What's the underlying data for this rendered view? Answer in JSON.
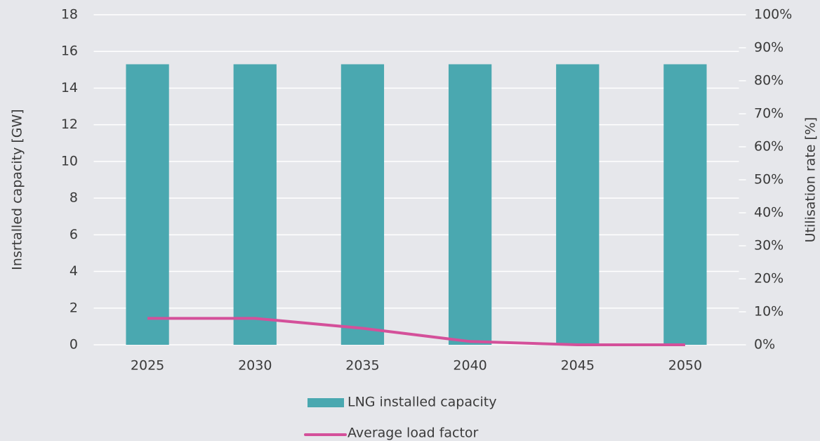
{
  "chart_data": {
    "type": "bar",
    "categories": [
      "2025",
      "2030",
      "2035",
      "2040",
      "2045",
      "2050"
    ],
    "series": [
      {
        "name": "LNG installed capacity",
        "type": "bar",
        "color": "#4aa8b0",
        "values": [
          15.3,
          15.3,
          15.3,
          15.3,
          15.3,
          15.3
        ]
      },
      {
        "name": "Average load factor",
        "type": "line",
        "axis": "y2",
        "color": "#d4509a",
        "values": [
          8,
          8,
          5,
          1,
          0,
          0
        ]
      }
    ],
    "ylabel": "Insrtalled capacity [GW]",
    "y2label": "Utilisation rate [%]",
    "ylim": [
      0,
      18
    ],
    "yticks": [
      0,
      2,
      4,
      6,
      8,
      10,
      12,
      14,
      16,
      18
    ],
    "y2lim": [
      0,
      100
    ],
    "y2ticks": [
      {
        "value": 0,
        "label": "0%"
      },
      {
        "value": 10,
        "label": "10%"
      },
      {
        "value": 20,
        "label": "20%"
      },
      {
        "value": 30,
        "label": "30%"
      },
      {
        "value": 40,
        "label": "40%"
      },
      {
        "value": 50,
        "label": "50%"
      },
      {
        "value": 60,
        "label": "60%"
      },
      {
        "value": 70,
        "label": "70%"
      },
      {
        "value": 80,
        "label": "80%"
      },
      {
        "value": 90,
        "label": "90%"
      },
      {
        "value": 100,
        "label": "100%"
      }
    ],
    "grid": true
  }
}
